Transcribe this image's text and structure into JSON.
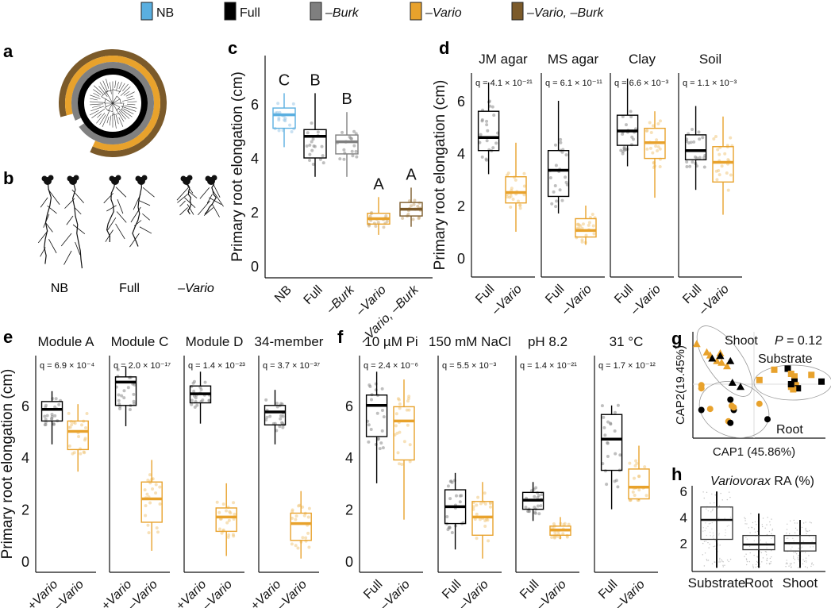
{
  "legend": {
    "items": [
      {
        "label": "NB",
        "color": "#5aafe0",
        "italic": false
      },
      {
        "label": "Full",
        "color": "#000000",
        "italic": false
      },
      {
        "label": "–Burk",
        "color": "#7f7f7f",
        "italic": true
      },
      {
        "label": "–Vario",
        "color": "#e8a22c",
        "italic": true
      },
      {
        "label": "–Vario, –Burk",
        "color": "#7b5a2a",
        "italic": true
      }
    ]
  },
  "panel_labels": {
    "a": "a",
    "b": "b",
    "c": "c",
    "d": "d",
    "e": "e",
    "f": "f",
    "g": "g",
    "h": "h"
  },
  "panel_a": {
    "description": "circular phylogenetic tree with four strain-membership rings",
    "rings": [
      "Full",
      "–Burk",
      "–Vario",
      "–Vario, –Burk"
    ],
    "ring_colors": [
      "#000000",
      "#808080",
      "#e8a22c",
      "#7b5a2a"
    ]
  },
  "panel_b": {
    "labels": [
      "NB",
      "Full",
      "–Vario"
    ]
  },
  "colors": {
    "full": "#000000",
    "vario": "#e8a22c",
    "nb": "#5aafe0",
    "burk": "#7f7f7f",
    "vario_burk": "#7b5a2a",
    "point_gray": "#8a8a8a"
  },
  "chart_data": [
    {
      "id": "c",
      "type": "box",
      "ylabel": "Primary root elongation (cm)",
      "yticks": [
        0,
        2,
        4,
        6
      ],
      "ylim": [
        0,
        7.5
      ],
      "categories": [
        "NB",
        "Full",
        "–Burk",
        "–Vario",
        "–Vario, –Burk"
      ],
      "category_colors": [
        "#5aafe0",
        "#000000",
        "#7f7f7f",
        "#e8a22c",
        "#7b5a2a"
      ],
      "significance_letters": [
        "C",
        "B",
        "B",
        "A",
        "A"
      ],
      "boxes": [
        {
          "min": 4.4,
          "q1": 5.1,
          "median": 5.6,
          "q3": 5.85,
          "max": 6.4
        },
        {
          "min": 3.3,
          "q1": 4.0,
          "median": 4.8,
          "q3": 5.05,
          "max": 6.4
        },
        {
          "min": 3.3,
          "q1": 4.15,
          "median": 4.6,
          "q3": 4.85,
          "max": 5.7
        },
        {
          "min": 1.15,
          "q1": 1.55,
          "median": 1.75,
          "q3": 1.95,
          "max": 2.55
        },
        {
          "min": 1.45,
          "q1": 1.85,
          "median": 2.1,
          "q3": 2.35,
          "max": 2.9
        }
      ]
    },
    {
      "id": "d",
      "type": "box-facet",
      "ylabel": "Primary root elongation (cm)",
      "yticks": [
        0,
        2,
        4,
        6
      ],
      "ylim": [
        0,
        7.5
      ],
      "facets": [
        {
          "title": "JM agar",
          "q": "q = 4.1 × 10⁻²¹",
          "categories": [
            "Full",
            "–Vario"
          ],
          "boxes": [
            {
              "min": 3.2,
              "q1": 4.1,
              "median": 4.6,
              "q3": 5.6,
              "max": 6.7
            },
            {
              "min": 1.0,
              "q1": 2.1,
              "median": 2.5,
              "q3": 3.1,
              "max": 4.4
            }
          ]
        },
        {
          "title": "MS agar",
          "q": "q = 6.1 × 10⁻¹¹",
          "categories": [
            "Full",
            "–Vario"
          ],
          "boxes": [
            {
              "min": 1.7,
              "q1": 2.35,
              "median": 3.35,
              "q3": 4.1,
              "max": 6.0
            },
            {
              "min": 0.5,
              "q1": 0.8,
              "median": 1.05,
              "q3": 1.5,
              "max": 2.0
            }
          ]
        },
        {
          "title": "Clay",
          "q": "q = 6.6 × 10⁻³",
          "categories": [
            "Full",
            "–Vario"
          ],
          "boxes": [
            {
              "min": 3.5,
              "q1": 4.3,
              "median": 4.85,
              "q3": 5.45,
              "max": 6.85
            },
            {
              "min": 2.3,
              "q1": 3.8,
              "median": 4.4,
              "q3": 4.95,
              "max": 5.6
            }
          ]
        },
        {
          "title": "Soil",
          "q": "q = 1.1 × 10⁻³",
          "categories": [
            "Full",
            "–Vario"
          ],
          "boxes": [
            {
              "min": 2.6,
              "q1": 3.75,
              "median": 4.1,
              "q3": 4.7,
              "max": 5.8
            },
            {
              "min": 1.65,
              "q1": 2.9,
              "median": 3.65,
              "q3": 4.25,
              "max": 5.4
            }
          ]
        }
      ]
    },
    {
      "id": "e",
      "type": "box-facet",
      "ylabel": "Primary root elongation (cm)",
      "yticks": [
        0,
        2,
        4,
        6
      ],
      "ylim": [
        0,
        7.5
      ],
      "facets": [
        {
          "title": "Module A",
          "q": "q = 6.9 × 10⁻⁴",
          "categories": [
            "+Vario",
            "–Vario"
          ],
          "boxes": [
            {
              "min": 4.5,
              "q1": 5.4,
              "median": 5.85,
              "q3": 6.15,
              "max": 6.55
            },
            {
              "min": 3.45,
              "q1": 4.3,
              "median": 5.0,
              "q3": 5.4,
              "max": 6.05
            }
          ]
        },
        {
          "title": "Module C",
          "q": "q = 2.0 × 10⁻¹⁷",
          "categories": [
            "+Vario",
            "–Vario"
          ],
          "boxes": [
            {
              "min": 5.2,
              "q1": 6.0,
              "median": 6.9,
              "q3": 7.1,
              "max": 7.5
            },
            {
              "min": 0.4,
              "q1": 1.5,
              "median": 2.4,
              "q3": 3.05,
              "max": 3.9
            }
          ]
        },
        {
          "title": "Module D",
          "q": "q = 1.4 × 10⁻²³",
          "categories": [
            "+Vario",
            "–Vario"
          ],
          "boxes": [
            {
              "min": 5.3,
              "q1": 6.1,
              "median": 6.45,
              "q3": 6.75,
              "max": 7.3
            },
            {
              "min": 0.2,
              "q1": 1.15,
              "median": 1.7,
              "q3": 2.05,
              "max": 3.0
            }
          ]
        },
        {
          "title": "34-member",
          "q": "q = 3.7 × 10⁻³⁷",
          "categories": [
            "+Vario",
            "–Vario"
          ],
          "boxes": [
            {
              "min": 4.5,
              "q1": 5.25,
              "median": 5.75,
              "q3": 6.0,
              "max": 6.6
            },
            {
              "min": 0.1,
              "q1": 0.8,
              "median": 1.45,
              "q3": 1.85,
              "max": 2.7
            }
          ]
        }
      ]
    },
    {
      "id": "f",
      "type": "box-facet",
      "yticks": [
        0,
        2,
        4,
        6
      ],
      "ylim": [
        0,
        7.5
      ],
      "facets": [
        {
          "title": "10 µM Pi",
          "q": "q = 2.4 × 10⁻⁶",
          "categories": [
            "Full",
            "–Vario"
          ],
          "boxes": [
            {
              "min": 3.0,
              "q1": 4.8,
              "median": 6.0,
              "q3": 6.4,
              "max": 7.3
            },
            {
              "min": 1.6,
              "q1": 3.9,
              "median": 5.4,
              "q3": 5.95,
              "max": 7.0
            }
          ]
        },
        {
          "title": "150 mM NaCl",
          "q": "q = 5.5 × 10⁻³",
          "categories": [
            "Full",
            "–Vario"
          ],
          "boxes": [
            {
              "min": 0.45,
              "q1": 1.45,
              "median": 2.1,
              "q3": 2.75,
              "max": 3.4
            },
            {
              "min": 0.1,
              "q1": 1.0,
              "median": 1.7,
              "q3": 2.3,
              "max": 3.05
            }
          ]
        },
        {
          "title": "pH 8.2",
          "q": "q = 1.4 × 10⁻²¹",
          "categories": [
            "Full",
            "–Vario"
          ],
          "boxes": [
            {
              "min": 1.55,
              "q1": 2.0,
              "median": 2.35,
              "q3": 2.65,
              "max": 3.05
            },
            {
              "min": 0.85,
              "q1": 1.0,
              "median": 1.2,
              "q3": 1.35,
              "max": 1.7
            }
          ]
        },
        {
          "title": "31 °C",
          "q": "q = 1.7 × 10⁻¹²",
          "categories": [
            "Full",
            "–Vario"
          ],
          "boxes": [
            {
              "min": 2.0,
              "q1": 3.5,
              "median": 4.7,
              "q3": 5.65,
              "max": 6.0
            },
            {
              "min": 2.35,
              "q1": 2.4,
              "median": 2.85,
              "q3": 3.55,
              "max": 4.45
            }
          ]
        }
      ]
    },
    {
      "id": "g",
      "type": "scatter",
      "xlabel": "CAP1 (45.86%)",
      "ylabel": "CAP2(19.45%)",
      "annotation": "P = 0.12",
      "groups": [
        {
          "name": "Shoot",
          "marker": "triangle",
          "points": [
            {
              "x": -0.85,
              "y": 0.78,
              "c": "vario"
            },
            {
              "x": -0.7,
              "y": 0.62,
              "c": "vario"
            },
            {
              "x": -0.65,
              "y": 0.56,
              "c": "vario"
            },
            {
              "x": -0.5,
              "y": 0.6,
              "c": "vario"
            },
            {
              "x": -0.55,
              "y": 0.45,
              "c": "vario"
            },
            {
              "x": -0.62,
              "y": 0.5,
              "c": "full"
            },
            {
              "x": -0.48,
              "y": 0.42,
              "c": "vario"
            },
            {
              "x": -0.4,
              "y": 0.35,
              "c": "vario"
            },
            {
              "x": -0.5,
              "y": 0.55,
              "c": "full"
            },
            {
              "x": -0.35,
              "y": 0.45,
              "c": "full"
            },
            {
              "x": -0.32,
              "y": 0.03,
              "c": "full"
            },
            {
              "x": -0.2,
              "y": -0.05,
              "c": "full"
            }
          ]
        },
        {
          "name": "Substrate",
          "marker": "square",
          "points": [
            {
              "x": 0.3,
              "y": 0.28,
              "c": "vario"
            },
            {
              "x": 0.5,
              "y": 0.3,
              "c": "full"
            },
            {
              "x": 0.55,
              "y": 0.2,
              "c": "vario"
            },
            {
              "x": 0.6,
              "y": 0.15,
              "c": "vario"
            },
            {
              "x": 0.85,
              "y": 0.18,
              "c": "vario"
            },
            {
              "x": 1.0,
              "y": 0.05,
              "c": "full"
            },
            {
              "x": 0.6,
              "y": 0.05,
              "c": "full"
            },
            {
              "x": 0.62,
              "y": -0.02,
              "c": "vario"
            },
            {
              "x": 0.65,
              "y": -0.08,
              "c": "full"
            },
            {
              "x": 0.58,
              "y": -0.1,
              "c": "vario"
            },
            {
              "x": 0.55,
              "y": -0.05,
              "c": "vario"
            },
            {
              "x": 0.08,
              "y": 0.08,
              "c": "vario"
            },
            {
              "x": 0.55,
              "y": 0.0,
              "c": "full"
            }
          ]
        },
        {
          "name": "Root",
          "marker": "circle",
          "points": [
            {
              "x": -0.78,
              "y": -0.02,
              "c": "vario"
            },
            {
              "x": -0.78,
              "y": -0.08,
              "c": "vario"
            },
            {
              "x": -0.35,
              "y": -0.3,
              "c": "full"
            },
            {
              "x": -0.33,
              "y": -0.42,
              "c": "vario"
            },
            {
              "x": -0.3,
              "y": -0.5,
              "c": "full"
            },
            {
              "x": -0.3,
              "y": -0.45,
              "c": "vario"
            },
            {
              "x": -0.78,
              "y": -0.5,
              "c": "full"
            },
            {
              "x": -0.65,
              "y": -0.48,
              "c": "vario"
            },
            {
              "x": -0.38,
              "y": -0.72,
              "c": "vario"
            },
            {
              "x": -0.35,
              "y": -0.75,
              "c": "full"
            },
            {
              "x": 0.08,
              "y": -0.38,
              "c": "vario"
            },
            {
              "x": 0.2,
              "y": -0.68,
              "c": "full"
            }
          ]
        }
      ]
    },
    {
      "id": "h",
      "type": "box",
      "title": "Variovorax RA (%)",
      "title_italic_part": "Variovorax",
      "title_rest": " RA (%)",
      "yticks": [
        2,
        4,
        6
      ],
      "ylim": [
        0,
        6.2
      ],
      "categories": [
        "Substrate",
        "Root",
        "Shoot"
      ],
      "boxes": [
        {
          "min": 0.1,
          "q1": 2.3,
          "median": 3.8,
          "q3": 4.8,
          "max": 6.0
        },
        {
          "min": 0.1,
          "q1": 1.5,
          "median": 1.9,
          "q3": 2.6,
          "max": 4.3
        },
        {
          "min": 0.1,
          "q1": 1.4,
          "median": 2.0,
          "q3": 2.6,
          "max": 3.8
        }
      ]
    }
  ]
}
